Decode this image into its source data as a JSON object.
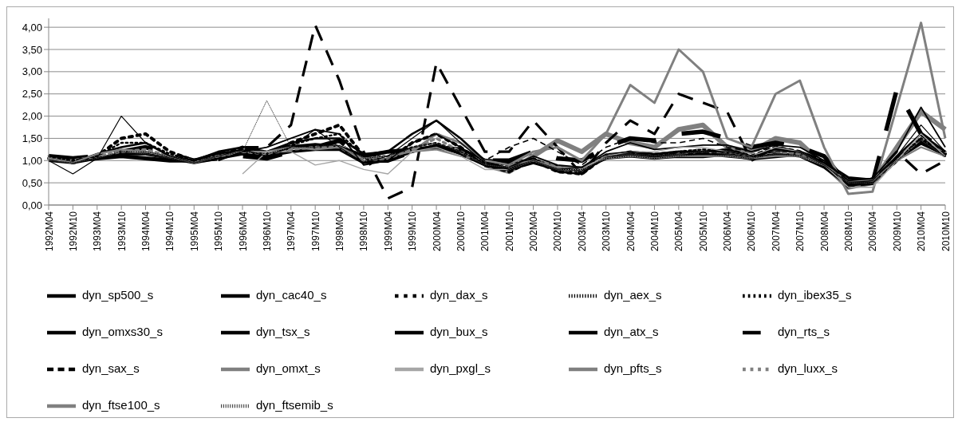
{
  "chart_data": {
    "type": "line",
    "categories": [
      "1992M04",
      "1992M10",
      "1993M04",
      "1993M10",
      "1994M04",
      "1994M10",
      "1995M04",
      "1995M10",
      "1996M04",
      "1996M10",
      "1997M04",
      "1997M10",
      "1998M04",
      "1998M10",
      "1999M04",
      "1999M10",
      "2000M04",
      "2000M10",
      "2001M04",
      "2001M10",
      "2002M04",
      "2002M10",
      "2003M04",
      "2003M10",
      "2004M04",
      "2004M10",
      "2005M04",
      "2005M10",
      "2006M04",
      "2006M10",
      "2007M04",
      "2007M10",
      "2008M04",
      "2008M10",
      "2009M04",
      "2009M10",
      "2010M04",
      "2010M10"
    ],
    "ylim": [
      0,
      4.2
    ],
    "yticks": [
      {
        "value": 0,
        "label": "0,00"
      },
      {
        "value": 0.5,
        "label": "0,50"
      },
      {
        "value": 1,
        "label": "1,00"
      },
      {
        "value": 1.5,
        "label": "1,50"
      },
      {
        "value": 2,
        "label": "2,00"
      },
      {
        "value": 2.5,
        "label": "2,50"
      },
      {
        "value": 3,
        "label": "3,00"
      },
      {
        "value": 3.5,
        "label": "3,50"
      },
      {
        "value": 4,
        "label": "4,00"
      }
    ],
    "grid": "y",
    "legend": "bottom",
    "marker": "none",
    "series": [
      {
        "name": "dyn_sp500_s",
        "color": "#000000",
        "line_style": "solid",
        "values": [
          1.05,
          1.0,
          1.05,
          1.1,
          1.05,
          1.0,
          1.0,
          1.15,
          1.2,
          1.15,
          1.3,
          1.35,
          1.3,
          1.1,
          1.2,
          1.25,
          1.3,
          1.25,
          1.0,
          0.95,
          1.0,
          0.85,
          0.8,
          1.1,
          1.15,
          1.1,
          1.1,
          1.1,
          1.15,
          1.05,
          1.1,
          1.15,
          0.95,
          0.6,
          0.55,
          1.05,
          1.4,
          1.15
        ]
      },
      {
        "name": "dyn_cac40_s",
        "color": "#000000",
        "line_style": "solid",
        "values": [
          1.0,
          0.7,
          1.05,
          2.0,
          1.4,
          1.1,
          0.95,
          1.1,
          1.25,
          1.1,
          1.3,
          1.7,
          1.3,
          0.95,
          1.1,
          1.5,
          1.9,
          1.4,
          0.95,
          0.8,
          1.0,
          0.8,
          0.85,
          1.15,
          1.2,
          1.1,
          1.15,
          1.2,
          1.2,
          1.1,
          1.2,
          1.2,
          0.9,
          0.5,
          0.55,
          1.1,
          1.8,
          1.2
        ]
      },
      {
        "name": "dyn_dax_s",
        "color": "#000000",
        "line_style": "dotted",
        "values": [
          1.05,
          0.95,
          1.1,
          1.5,
          1.6,
          1.2,
          1.0,
          1.1,
          1.3,
          1.1,
          1.4,
          1.6,
          1.8,
          1.1,
          1.0,
          1.4,
          1.6,
          1.3,
          0.9,
          0.75,
          1.0,
          0.75,
          0.7,
          1.1,
          1.15,
          1.1,
          1.2,
          1.15,
          1.25,
          1.1,
          1.3,
          1.2,
          0.9,
          0.55,
          0.5,
          1.0,
          1.5,
          1.15
        ]
      },
      {
        "name": "dyn_aex_s",
        "color": "#000000",
        "line_style": "dotted",
        "values": [
          1.0,
          0.95,
          1.05,
          1.2,
          1.2,
          1.1,
          1.0,
          1.1,
          1.2,
          1.15,
          1.3,
          1.3,
          1.4,
          1.05,
          1.1,
          1.3,
          1.4,
          1.2,
          0.95,
          0.85,
          1.0,
          0.8,
          0.8,
          1.05,
          1.1,
          1.05,
          1.1,
          1.15,
          1.1,
          1.05,
          1.15,
          1.1,
          0.9,
          0.5,
          0.5,
          1.0,
          1.4,
          1.1
        ]
      },
      {
        "name": "dyn_ibex35_s",
        "color": "#000000",
        "line_style": "dotted",
        "values": [
          1.1,
          1.0,
          1.1,
          1.4,
          1.4,
          1.15,
          1.0,
          1.15,
          1.25,
          1.2,
          1.35,
          1.5,
          1.6,
          1.1,
          1.1,
          1.3,
          1.4,
          1.2,
          0.95,
          0.9,
          1.05,
          0.8,
          0.75,
          1.1,
          1.15,
          1.1,
          1.2,
          1.25,
          1.2,
          1.1,
          1.25,
          1.2,
          0.9,
          0.55,
          0.5,
          1.05,
          1.5,
          1.1
        ]
      },
      {
        "name": "dyn_omxs30_s",
        "color": "#000000",
        "line_style": "solid",
        "values": [
          1.05,
          0.95,
          1.15,
          1.3,
          1.4,
          1.1,
          1.0,
          1.2,
          1.3,
          1.2,
          1.4,
          1.5,
          1.5,
          1.15,
          1.2,
          1.6,
          1.9,
          1.5,
          1.0,
          0.8,
          1.05,
          0.75,
          0.7,
          1.1,
          1.2,
          1.15,
          1.2,
          1.2,
          1.25,
          1.1,
          1.25,
          1.2,
          0.95,
          0.55,
          0.5,
          1.1,
          1.6,
          1.2
        ]
      },
      {
        "name": "dyn_tsx_s",
        "color": "#000000",
        "line_style": "solid",
        "values": [
          1.0,
          0.95,
          1.05,
          1.15,
          1.15,
          1.05,
          0.95,
          1.05,
          1.15,
          1.1,
          1.2,
          1.25,
          1.25,
          0.95,
          1.0,
          1.2,
          1.35,
          1.15,
          0.9,
          0.8,
          0.95,
          0.8,
          0.8,
          1.05,
          1.1,
          1.05,
          1.1,
          1.15,
          1.1,
          1.05,
          1.15,
          1.1,
          0.85,
          0.45,
          0.5,
          1.0,
          1.45,
          1.1
        ]
      },
      {
        "name": "dyn_bux_s",
        "color": "#000000",
        "line_style": "solid",
        "values": [
          null,
          null,
          null,
          null,
          null,
          null,
          null,
          1.0,
          1.2,
          1.3,
          1.5,
          1.7,
          1.6,
          0.9,
          1.0,
          1.4,
          1.6,
          1.3,
          0.9,
          0.85,
          1.1,
          0.9,
          0.85,
          1.2,
          1.4,
          1.25,
          1.3,
          1.35,
          1.35,
          1.2,
          1.35,
          1.3,
          1.0,
          0.55,
          0.6,
          1.2,
          2.2,
          1.3
        ]
      },
      {
        "name": "dyn_atx_s",
        "color": "#000000",
        "line_style": "dashed",
        "values": [
          1.1,
          1.05,
          1.1,
          1.2,
          1.3,
          1.15,
          1.0,
          1.05,
          1.1,
          1.05,
          1.2,
          1.3,
          1.45,
          1.0,
          1.0,
          1.2,
          1.3,
          1.2,
          1.0,
          1.0,
          1.2,
          1.05,
          1.0,
          1.3,
          1.5,
          1.45,
          1.6,
          1.65,
          1.5,
          1.3,
          1.4,
          1.3,
          1.1,
          0.45,
          0.5,
          2.6,
          1.6,
          1.2
        ]
      },
      {
        "name": "dyn_rts_s",
        "color": "#000000",
        "line_style": "dashed",
        "values": [
          null,
          null,
          null,
          null,
          null,
          null,
          null,
          null,
          1.3,
          1.3,
          1.8,
          4.05,
          2.8,
          1.2,
          0.15,
          0.4,
          3.2,
          2.2,
          1.2,
          1.2,
          1.9,
          1.3,
          0.7,
          1.4,
          1.9,
          1.6,
          2.5,
          2.3,
          2.1,
          1.0,
          1.3,
          1.2,
          1.0,
          0.4,
          0.6,
          1.2,
          0.7,
          1.0
        ]
      },
      {
        "name": "dyn_sax_s",
        "color": "#000000",
        "line_style": "dashed",
        "values": [
          null,
          null,
          null,
          null,
          null,
          null,
          null,
          null,
          null,
          null,
          null,
          null,
          null,
          null,
          null,
          null,
          null,
          1.1,
          1.0,
          1.3,
          1.5,
          1.2,
          0.9,
          1.3,
          1.5,
          1.4,
          1.4,
          1.5,
          1.3,
          1.2,
          1.3,
          1.2,
          1.0,
          0.5,
          0.5,
          1.0,
          1.5,
          1.2
        ]
      },
      {
        "name": "dyn_omxt_s",
        "color": "#808080",
        "line_style": "solid",
        "values": [
          null,
          null,
          null,
          null,
          null,
          null,
          null,
          null,
          null,
          null,
          null,
          null,
          null,
          null,
          null,
          null,
          null,
          null,
          0.9,
          0.75,
          1.1,
          1.45,
          1.2,
          1.6,
          1.4,
          1.3,
          1.7,
          1.8,
          1.3,
          1.2,
          1.5,
          1.4,
          0.9,
          0.4,
          0.5,
          1.3,
          2.1,
          1.7
        ]
      },
      {
        "name": "dyn_pxgl_s",
        "color": "#a6a6a6",
        "line_style": "solid",
        "values": [
          null,
          null,
          null,
          null,
          null,
          null,
          null,
          null,
          0.7,
          1.2,
          1.2,
          0.9,
          1.0,
          0.8,
          0.7,
          1.2,
          1.3,
          1.1,
          0.8,
          0.8,
          1.0,
          0.8,
          0.8,
          1.1,
          1.2,
          1.2,
          1.3,
          1.3,
          1.2,
          1.1,
          1.3,
          1.2,
          0.9,
          0.4,
          0.4,
          1.0,
          1.6,
          1.1
        ]
      },
      {
        "name": "dyn_pfts_s",
        "color": "#808080",
        "line_style": "solid",
        "values": [
          null,
          null,
          null,
          null,
          null,
          null,
          null,
          null,
          null,
          null,
          null,
          null,
          null,
          null,
          null,
          1.2,
          1.6,
          1.4,
          1.0,
          0.9,
          1.2,
          1.3,
          1.0,
          1.6,
          2.7,
          2.3,
          3.5,
          3.0,
          1.5,
          1.3,
          2.5,
          2.8,
          1.3,
          0.25,
          0.3,
          2.2,
          4.1,
          1.5
        ]
      },
      {
        "name": "dyn_luxx_s",
        "color": "#808080",
        "line_style": "dotted",
        "values": [
          1.05,
          1.0,
          1.1,
          1.2,
          1.25,
          1.1,
          1.0,
          1.1,
          1.2,
          1.15,
          1.25,
          1.3,
          1.3,
          1.0,
          1.05,
          1.25,
          1.5,
          1.2,
          0.95,
          0.9,
          1.05,
          0.85,
          0.8,
          1.1,
          1.2,
          1.15,
          1.2,
          1.25,
          1.2,
          1.1,
          1.2,
          1.15,
          0.95,
          0.55,
          0.5,
          1.0,
          1.5,
          1.2
        ]
      },
      {
        "name": "dyn_ftse100_s",
        "color": "#808080",
        "line_style": "solid",
        "values": [
          1.05,
          0.95,
          1.15,
          1.25,
          1.2,
          1.1,
          0.95,
          1.1,
          1.2,
          1.2,
          1.3,
          1.25,
          1.3,
          1.05,
          1.1,
          1.2,
          1.25,
          1.1,
          1.0,
          0.9,
          1.0,
          0.85,
          0.85,
          1.05,
          1.1,
          1.05,
          1.1,
          1.1,
          1.1,
          1.05,
          1.1,
          1.1,
          0.9,
          0.55,
          0.55,
          1.0,
          1.3,
          1.1
        ]
      },
      {
        "name": "dyn_ftsemib_s",
        "color": "#404040",
        "line_style": "dotted",
        "values": [
          1.0,
          0.95,
          1.05,
          1.2,
          1.15,
          1.05,
          0.95,
          1.1,
          1.2,
          2.35,
          1.3,
          1.3,
          1.35,
          1.0,
          1.05,
          1.3,
          1.4,
          1.2,
          0.9,
          0.85,
          1.0,
          0.8,
          0.75,
          1.1,
          1.15,
          1.1,
          1.15,
          1.2,
          1.15,
          1.05,
          1.15,
          1.15,
          0.9,
          0.5,
          0.5,
          1.0,
          1.45,
          1.1
        ]
      }
    ]
  }
}
